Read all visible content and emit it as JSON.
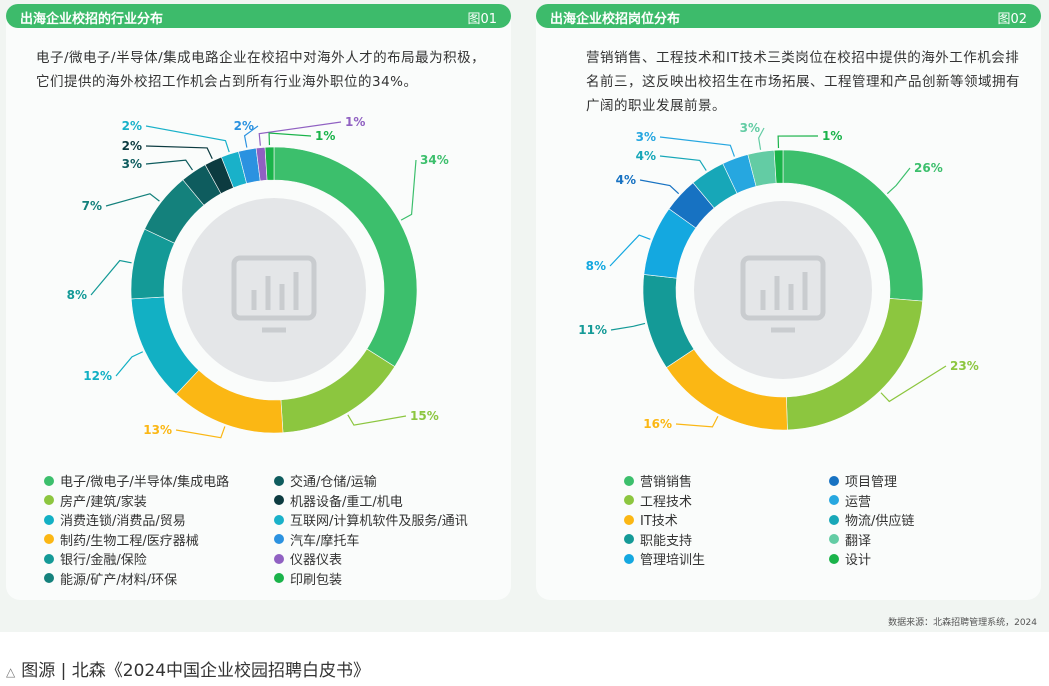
{
  "source": "数据来源：北森招聘管理系统，2024",
  "caption": "图源 | 北森《2024中国企业校园招聘白皮书》",
  "caption_icon": "triangle-up-icon",
  "colors": {
    "bar": "#3dbb6b",
    "hole": "#e4e6e8",
    "icon": "#c9cccf"
  },
  "chart_data": [
    {
      "type": "pie",
      "title": "出海企业校招的行业分布",
      "figure": "图01",
      "description": "电子/微电子/半导体/集成电路企业在校招中对海外人才的布局最为积极，它们提供的海外校招工作机会占到所有行业海外职位的34%。",
      "center_icon": "bar-chart-icon",
      "slices": [
        {
          "label": "电子/微电子/半导体/集成电路",
          "value": 34,
          "display": "34%",
          "color": "#3cbf6c"
        },
        {
          "label": "房产/建筑/家装",
          "value": 15,
          "display": "15%",
          "color": "#8cc63f"
        },
        {
          "label": "制药/生物工程/医疗器械",
          "value": 13,
          "display": "13%",
          "color": "#fbb714"
        },
        {
          "label": "消费连锁/消费品/贸易",
          "value": 12,
          "display": "12%",
          "color": "#12b0c4"
        },
        {
          "label": "银行/金融/保险",
          "value": 8,
          "display": "8%",
          "color": "#149a97"
        },
        {
          "label": "能源/矿产/材料/环保",
          "value": 7,
          "display": "7%",
          "color": "#14817c"
        },
        {
          "label": "交通/仓储/运输",
          "value": 3,
          "display": "3%",
          "color": "#0e5c5e"
        },
        {
          "label": "机器设备/重工/机电",
          "value": 2,
          "display": "2%",
          "color": "#0c3b40"
        },
        {
          "label": "互联网/计算机软件及服务/通讯",
          "value": 2,
          "display": "2%",
          "color": "#19b1c9"
        },
        {
          "label": "汽车/摩托车",
          "value": 2,
          "display": "2%",
          "color": "#2b92e0"
        },
        {
          "label": "仪器仪表",
          "value": 1,
          "display": "1%",
          "color": "#9061c2"
        },
        {
          "label": "印刷包装",
          "value": 1,
          "display": "1%",
          "color": "#1ab34a"
        }
      ],
      "legend_left": [
        "电子/微电子/半导体/集成电路",
        "房产/建筑/家装",
        "消费连锁/消费品/贸易",
        "制药/生物工程/医疗器械",
        "银行/金融/保险",
        "能源/矿产/材料/环保"
      ],
      "legend_right": [
        "交通/仓储/运输",
        "机器设备/重工/机电",
        "互联网/计算机软件及服务/通讯",
        "汽车/摩托车",
        "仪器仪表",
        "印刷包装"
      ]
    },
    {
      "type": "pie",
      "title": "出海企业校招岗位分布",
      "figure": "图02",
      "description": "营销销售、工程技术和IT技术三类岗位在校招中提供的海外工作机会排名前三，这反映出校招生在市场拓展、工程管理和产品创新等领域拥有广阔的职业发展前景。",
      "center_icon": "bar-chart-icon",
      "slices": [
        {
          "label": "营销销售",
          "value": 26,
          "display": "26%",
          "color": "#3cbf6c"
        },
        {
          "label": "工程技术",
          "value": 23,
          "display": "23%",
          "color": "#8cc63f"
        },
        {
          "label": "IT技术",
          "value": 16,
          "display": "16%",
          "color": "#fbb714"
        },
        {
          "label": "职能支持",
          "value": 11,
          "display": "11%",
          "color": "#149a97"
        },
        {
          "label": "管理培训生",
          "value": 8,
          "display": "8%",
          "color": "#14a8e0"
        },
        {
          "label": "项目管理",
          "value": 4,
          "display": "4%",
          "color": "#1772c2"
        },
        {
          "label": "物流/供应链",
          "value": 4,
          "display": "4%",
          "color": "#17a7b8"
        },
        {
          "label": "运营",
          "value": 3,
          "display": "3%",
          "color": "#26a7e0"
        },
        {
          "label": "翻译",
          "value": 3,
          "display": "3%",
          "color": "#63cca4"
        },
        {
          "label": "设计",
          "value": 1,
          "display": "1%",
          "color": "#1ab34a"
        }
      ],
      "legend_left": [
        "营销销售",
        "工程技术",
        "IT技术",
        "职能支持",
        "管理培训生"
      ],
      "legend_right": [
        "项目管理",
        "运营",
        "物流/供应链",
        "翻译",
        "设计"
      ]
    }
  ]
}
